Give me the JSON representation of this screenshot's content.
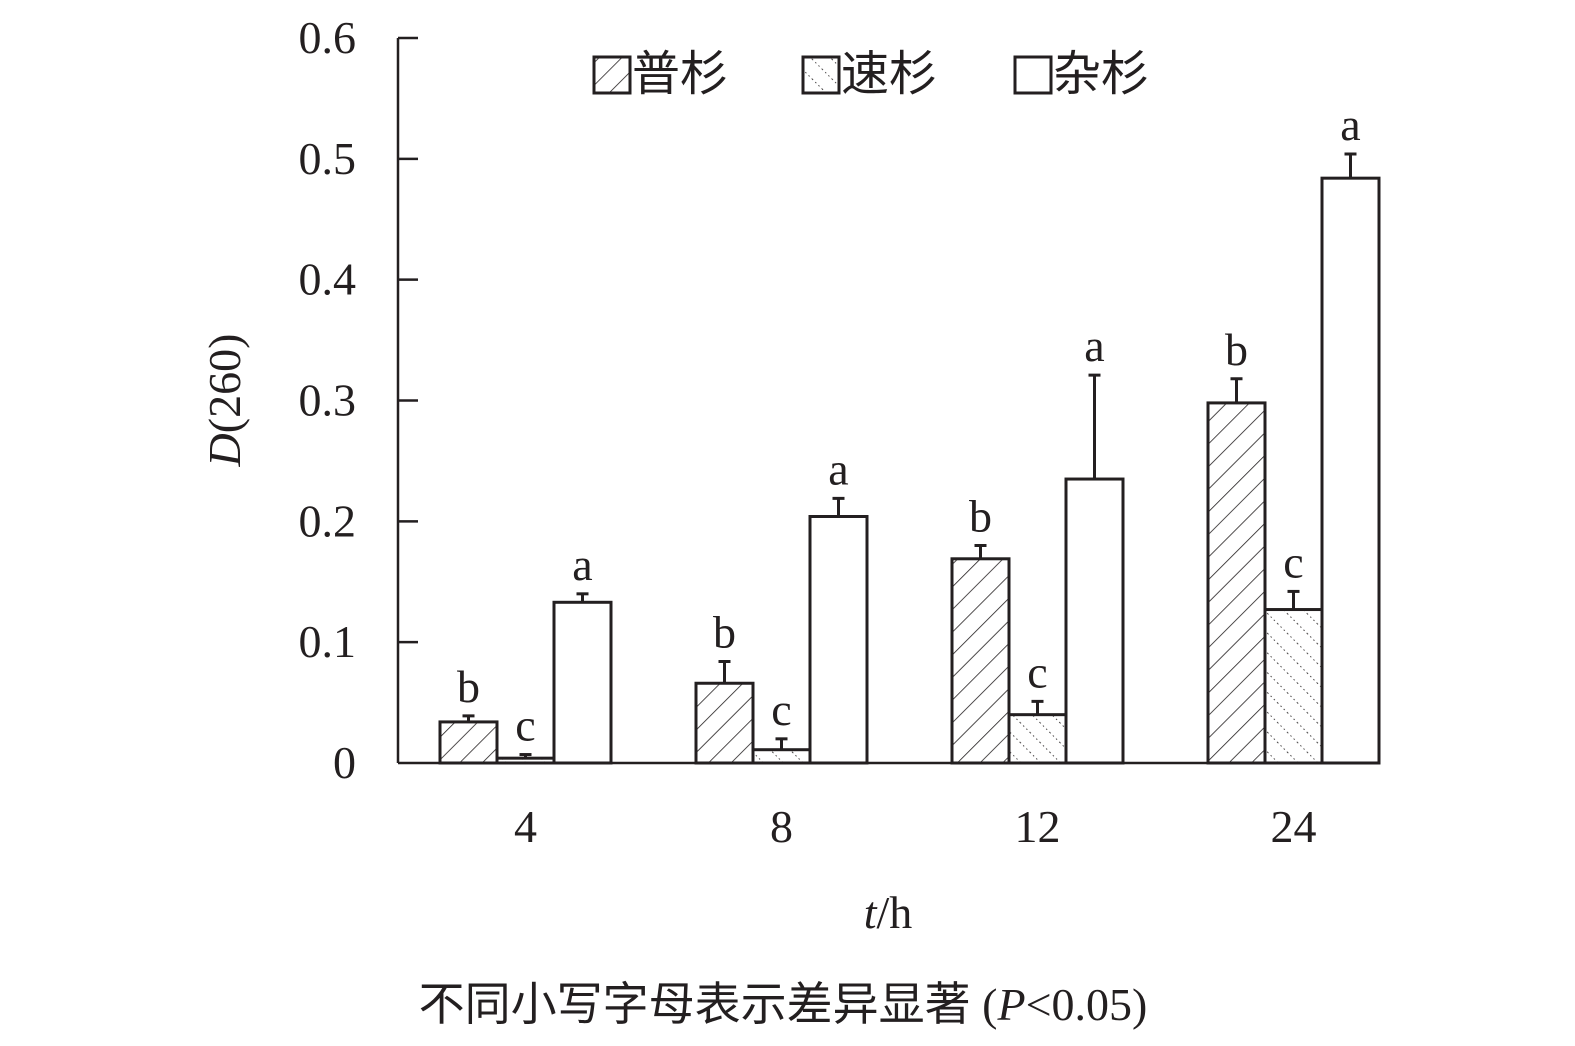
{
  "chart_data": {
    "type": "bar",
    "categories": [
      "4",
      "8",
      "12",
      "24"
    ],
    "xlabel_italic": "t",
    "xlabel_rest": "/h",
    "ylabel_italic": "D",
    "ylabel_rest": "(260)",
    "ylim": [
      0,
      0.6
    ],
    "yticks": [
      "0",
      "0.1",
      "0.2",
      "0.3",
      "0.4",
      "0.5",
      "0.6"
    ],
    "grid": false,
    "legend_position": "top",
    "series": [
      {
        "name": "普杉",
        "pattern": "diagonal-hatch",
        "values": [
          0.034,
          0.066,
          0.169,
          0.298
        ],
        "error": [
          0.005,
          0.018,
          0.011,
          0.02
        ],
        "letters": [
          "b",
          "b",
          "b",
          "b"
        ]
      },
      {
        "name": "速杉",
        "pattern": "dotted-hatch",
        "values": [
          0.004,
          0.011,
          0.04,
          0.127
        ],
        "error": [
          0.003,
          0.009,
          0.011,
          0.015
        ],
        "letters": [
          "c",
          "c",
          "c",
          "c"
        ]
      },
      {
        "name": "杂杉",
        "pattern": "blank",
        "values": [
          0.133,
          0.204,
          0.235,
          0.484
        ],
        "error": [
          0.007,
          0.015,
          0.086,
          0.02
        ],
        "letters": [
          "a",
          "a",
          "a",
          "a"
        ]
      }
    ],
    "footnote": "不同小写字母表示差异显著 (",
    "footnote_p": "P",
    "footnote_end": "<0.05)",
    "colors": {
      "ink": "#231f20",
      "fill": "#ffffff"
    }
  }
}
